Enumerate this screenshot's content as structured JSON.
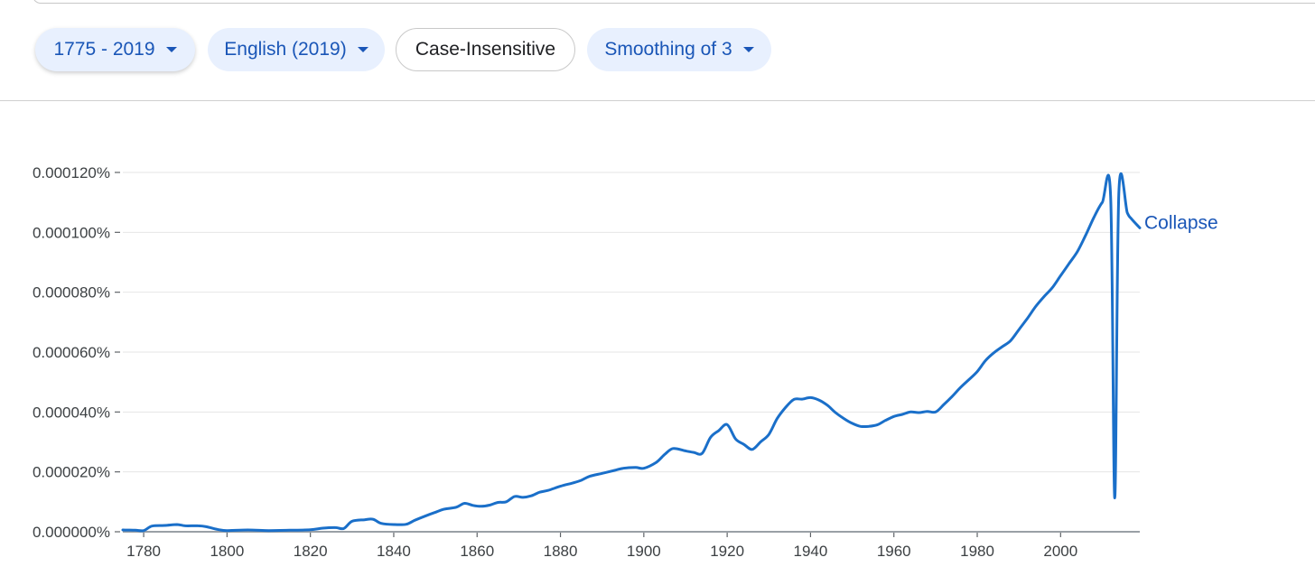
{
  "filters": {
    "year_range": "1775 - 2019",
    "corpus": "English (2019)",
    "case": "Case-Insensitive",
    "smoothing": "Smoothing of 3"
  },
  "colors": {
    "line": "#1a6fc9",
    "chip_bg": "#e8f0fe",
    "chip_text": "#1a56b7"
  },
  "chart_data": {
    "type": "line",
    "title": "",
    "xlabel": "",
    "ylabel": "",
    "xlim": [
      1775,
      2019
    ],
    "ylim": [
      0,
      0.00012
    ],
    "x_ticks": [
      1780,
      1800,
      1820,
      1840,
      1860,
      1880,
      1900,
      1920,
      1940,
      1960,
      1980,
      2000
    ],
    "x_tick_labels": [
      "1780",
      "1800",
      "1820",
      "1840",
      "1860",
      "1880",
      "1900",
      "1920",
      "1940",
      "1960",
      "1980",
      "2000"
    ],
    "y_ticks": [
      0,
      2e-05,
      4e-05,
      6e-05,
      8e-05,
      0.0001,
      0.00012
    ],
    "y_tick_labels": [
      "0.000000%",
      "0.000020%",
      "0.000040%",
      "0.000060%",
      "0.000080%",
      "0.000100%",
      "0.000120%"
    ],
    "grid": true,
    "series": [
      {
        "name": "Collapse",
        "x": [
          1775,
          1778,
          1780,
          1782,
          1785,
          1788,
          1790,
          1793,
          1795,
          1798,
          1800,
          1805,
          1810,
          1815,
          1820,
          1823,
          1826,
          1828,
          1830,
          1833,
          1835,
          1837,
          1840,
          1843,
          1845,
          1848,
          1850,
          1852,
          1855,
          1857,
          1859,
          1861,
          1863,
          1865,
          1867,
          1869,
          1871,
          1873,
          1875,
          1877,
          1880,
          1883,
          1885,
          1887,
          1890,
          1893,
          1895,
          1898,
          1900,
          1903,
          1905,
          1907,
          1910,
          1912,
          1914,
          1916,
          1918,
          1920,
          1922,
          1924,
          1926,
          1928,
          1930,
          1932,
          1934,
          1936,
          1938,
          1940,
          1942,
          1944,
          1946,
          1948,
          1950,
          1952,
          1954,
          1956,
          1958,
          1960,
          1962,
          1964,
          1966,
          1968,
          1970,
          1972,
          1974,
          1976,
          1978,
          1980,
          1982,
          1984,
          1986,
          1988,
          1990,
          1992,
          1994,
          1996,
          1998,
          2000,
          2002,
          2004,
          2006,
          2008,
          2010,
          2012,
          2013,
          2014,
          2016,
          2017,
          2019
        ],
        "values": [
          6e-07,
          5e-07,
          4e-07,
          1.9e-06,
          2.1e-06,
          2.4e-06,
          2e-06,
          2e-06,
          1.7e-06,
          7e-07,
          4e-07,
          6e-07,
          4e-07,
          5e-07,
          7e-07,
          1.2e-06,
          1.4e-06,
          1.1e-06,
          3.5e-06,
          4e-06,
          4.2e-06,
          2.8e-06,
          2.4e-06,
          2.5e-06,
          3.8e-06,
          5.5e-06,
          6.5e-06,
          7.5e-06,
          8.2e-06,
          9.5e-06,
          8.8e-06,
          8.5e-06,
          8.9e-06,
          9.8e-06,
          1e-05,
          1.18e-05,
          1.15e-05,
          1.2e-05,
          1.32e-05,
          1.38e-05,
          1.52e-05,
          1.63e-05,
          1.72e-05,
          1.85e-05,
          1.95e-05,
          2.05e-05,
          2.12e-05,
          2.15e-05,
          2.12e-05,
          2.32e-05,
          2.58e-05,
          2.78e-05,
          2.7e-05,
          2.65e-05,
          2.62e-05,
          3.15e-05,
          3.38e-05,
          3.58e-05,
          3.1e-05,
          2.92e-05,
          2.75e-05,
          3e-05,
          3.25e-05,
          3.78e-05,
          4.15e-05,
          4.42e-05,
          4.43e-05,
          4.48e-05,
          4.4e-05,
          4.23e-05,
          3.98e-05,
          3.78e-05,
          3.62e-05,
          3.52e-05,
          3.52e-05,
          3.57e-05,
          3.72e-05,
          3.85e-05,
          3.92e-05,
          4e-05,
          3.98e-05,
          4.02e-05,
          4e-05,
          4.25e-05,
          4.52e-05,
          4.82e-05,
          5.08e-05,
          5.35e-05,
          5.72e-05,
          5.98e-05,
          6.18e-05,
          6.38e-05,
          6.75e-05,
          7.12e-05,
          7.52e-05,
          7.85e-05,
          8.15e-05,
          8.55e-05,
          8.95e-05,
          9.35e-05,
          9.9e-05,
          0.000105,
          0.00011,
          0.000112,
          1.13e-05,
          0.0001138,
          0.0001065,
          0.0001045,
          0.0001015
        ]
      }
    ]
  }
}
